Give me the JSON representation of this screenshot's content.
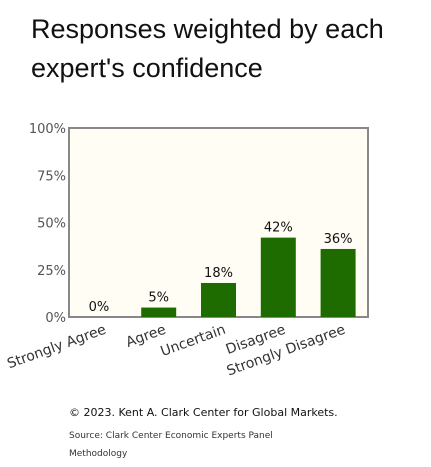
{
  "title": "Responses weighted by each expert's confidence",
  "chart_data": {
    "type": "bar",
    "categories": [
      "Strongly Agree",
      "Agree",
      "Uncertain",
      "Disagree",
      "Strongly Disagree"
    ],
    "values": [
      0,
      5,
      18,
      42,
      36
    ],
    "value_labels": [
      "0%",
      "5%",
      "18%",
      "42%",
      "36%"
    ],
    "ylim": [
      0,
      100
    ],
    "yticks": [
      0,
      25,
      50,
      75,
      100
    ],
    "ytick_labels": [
      "0%",
      "25%",
      "50%",
      "75%",
      "100%"
    ],
    "grid": false,
    "colors": {
      "bar": "#1e6b00",
      "plot_bg": "#fffdf4",
      "frame": "#888888"
    }
  },
  "footer": {
    "copyright": "© 2023. Kent A. Clark Center for Global Markets.",
    "source": "Source: Clark Center Economic Experts Panel",
    "methodology": "Methodology"
  }
}
